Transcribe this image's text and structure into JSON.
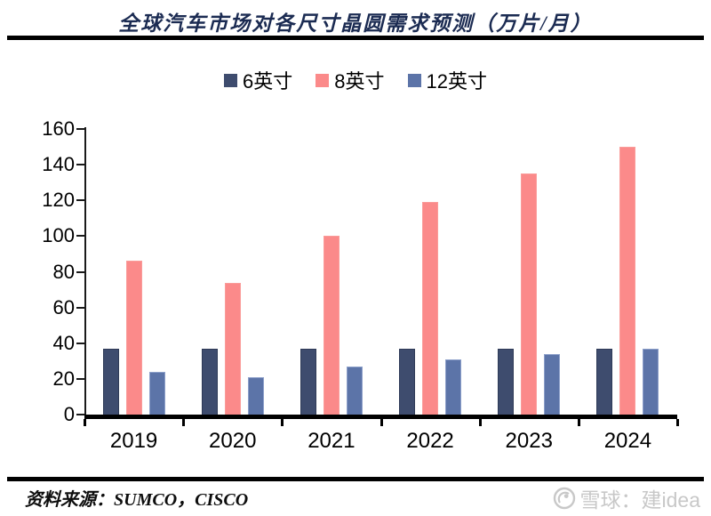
{
  "title": "全球汽车市场对各尺寸晶圆需求预测（万片/月）",
  "chart_data": {
    "type": "bar",
    "title": "全球汽车市场对各尺寸晶圆需求预测（万片/月）",
    "categories": [
      "2019",
      "2020",
      "2021",
      "2022",
      "2023",
      "2024"
    ],
    "series": [
      {
        "name": "6英寸",
        "color": "#3E4C6E",
        "border": "#2f3b57",
        "values": [
          37,
          37,
          37,
          37,
          37,
          37
        ]
      },
      {
        "name": "8英寸",
        "color": "#FB8A8A",
        "border": "#fa9c9a",
        "values": [
          86,
          74,
          100,
          119,
          135,
          150
        ]
      },
      {
        "name": "12英寸",
        "color": "#5C74A8",
        "border": "#8da0ca",
        "values": [
          24,
          21,
          27,
          31,
          34,
          37
        ]
      }
    ],
    "xlabel": "",
    "ylabel": "",
    "ylim": [
      0,
      160
    ],
    "ytick_step": 20,
    "grid": false,
    "legend_position": "top"
  },
  "footer": {
    "source_label": "资料来源：SUMCO，CISCO"
  },
  "watermark": {
    "text": "雪球：建idea",
    "color": "#c8c8c8"
  }
}
